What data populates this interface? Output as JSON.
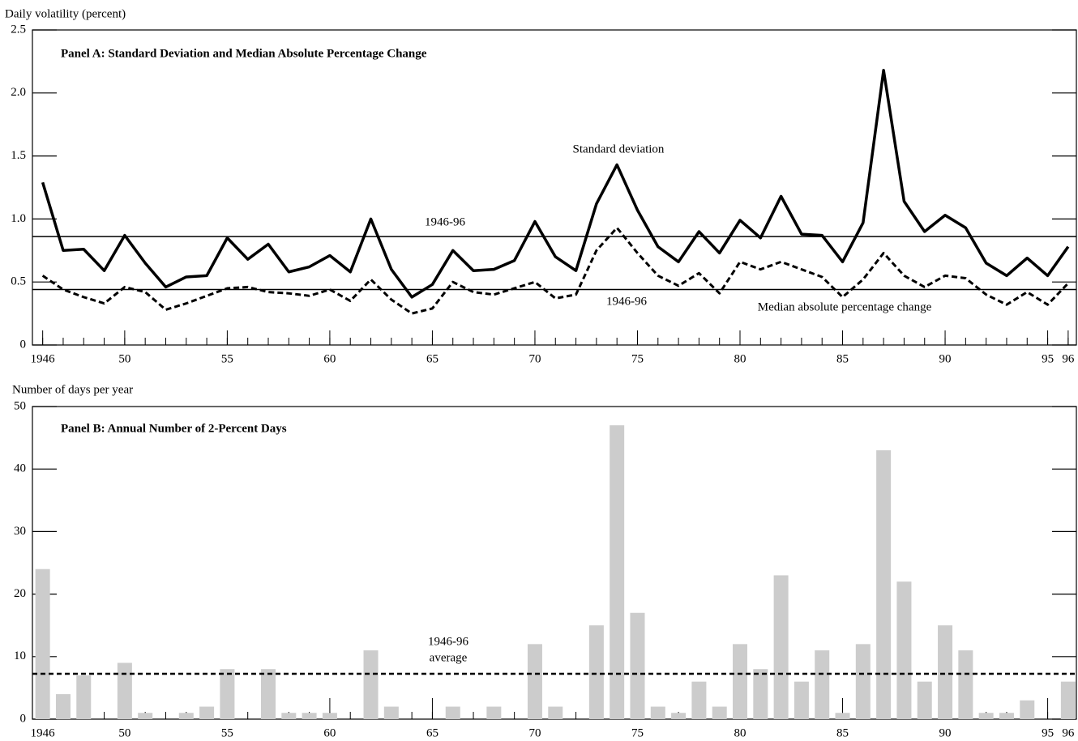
{
  "chart_data": [
    {
      "type": "line",
      "title": "Panel A:  Standard Deviation and Median Absolute Percentage Change",
      "y_label": "Daily volatility (percent)",
      "x": [
        1946,
        1947,
        1948,
        1949,
        1950,
        1951,
        1952,
        1953,
        1954,
        1955,
        1956,
        1957,
        1958,
        1959,
        1960,
        1961,
        1962,
        1963,
        1964,
        1965,
        1966,
        1967,
        1968,
        1969,
        1970,
        1971,
        1972,
        1973,
        1974,
        1975,
        1976,
        1977,
        1978,
        1979,
        1980,
        1981,
        1982,
        1983,
        1984,
        1985,
        1986,
        1987,
        1988,
        1989,
        1990,
        1991,
        1992,
        1993,
        1994,
        1995,
        1996
      ],
      "series": [
        {
          "name": "Standard deviation",
          "color": "#000000",
          "dash": false,
          "values": [
            1.29,
            0.75,
            0.76,
            0.59,
            0.87,
            0.65,
            0.46,
            0.54,
            0.55,
            0.85,
            0.68,
            0.8,
            0.58,
            0.62,
            0.71,
            0.58,
            1.0,
            0.6,
            0.38,
            0.48,
            0.75,
            0.59,
            0.6,
            0.67,
            0.98,
            0.7,
            0.59,
            1.12,
            1.43,
            1.07,
            0.78,
            0.66,
            0.9,
            0.73,
            0.99,
            0.85,
            1.18,
            0.88,
            0.87,
            0.66,
            0.97,
            2.18,
            1.14,
            0.9,
            1.03,
            0.93,
            0.65,
            0.55,
            0.69,
            0.55,
            0.78
          ]
        },
        {
          "name": "Median absolute percentage change",
          "color": "#000000",
          "dash": true,
          "values": [
            0.55,
            0.44,
            0.38,
            0.33,
            0.46,
            0.42,
            0.28,
            0.33,
            0.39,
            0.45,
            0.46,
            0.42,
            0.41,
            0.39,
            0.44,
            0.35,
            0.52,
            0.36,
            0.25,
            0.29,
            0.5,
            0.42,
            0.4,
            0.45,
            0.5,
            0.37,
            0.4,
            0.75,
            0.93,
            0.73,
            0.55,
            0.47,
            0.57,
            0.41,
            0.66,
            0.6,
            0.66,
            0.6,
            0.54,
            0.38,
            0.52,
            0.73,
            0.55,
            0.46,
            0.55,
            0.53,
            0.4,
            0.32,
            0.42,
            0.32,
            0.49
          ]
        }
      ],
      "reference_lines": [
        {
          "value": 0.86,
          "label": [
            "1946-96"
          ],
          "dash": false
        },
        {
          "value": 0.44,
          "label": [
            "1946-96"
          ],
          "dash": false
        }
      ],
      "xlim": [
        1945.5,
        1996.4
      ],
      "xticks": [
        1946,
        {
          "value": 1950,
          "label": "50"
        },
        {
          "value": 1955,
          "label": "55"
        },
        {
          "value": 1960,
          "label": "60"
        },
        {
          "value": 1965,
          "label": "65"
        },
        {
          "value": 1970,
          "label": "70"
        },
        {
          "value": 1975,
          "label": "75"
        },
        {
          "value": 1980,
          "label": "80"
        },
        {
          "value": 1985,
          "label": "85"
        },
        {
          "value": 1990,
          "label": "90"
        },
        {
          "value": 1995,
          "label": "95"
        },
        {
          "value": 1996,
          "label": "96"
        }
      ],
      "ylim": [
        0,
        2.5
      ],
      "yticks": [
        0,
        0.5,
        {
          "value": 1,
          "label": "1.0"
        },
        1.5,
        {
          "value": 2,
          "label": "2.0"
        },
        2.5
      ]
    },
    {
      "type": "bar",
      "title": "Panel B:  Annual Number of 2-Percent Days",
      "y_label": "Number of days per year",
      "x": [
        1946,
        1947,
        1948,
        1949,
        1950,
        1951,
        1952,
        1953,
        1954,
        1955,
        1956,
        1957,
        1958,
        1959,
        1960,
        1961,
        1962,
        1963,
        1964,
        1965,
        1966,
        1967,
        1968,
        1969,
        1970,
        1971,
        1972,
        1973,
        1974,
        1975,
        1976,
        1977,
        1978,
        1979,
        1980,
        1981,
        1982,
        1983,
        1984,
        1985,
        1986,
        1987,
        1988,
        1989,
        1990,
        1991,
        1992,
        1993,
        1994,
        1995,
        1996
      ],
      "values": [
        24,
        4,
        7,
        0,
        9,
        1,
        0,
        1,
        2,
        8,
        0,
        8,
        1,
        1,
        1,
        0,
        11,
        2,
        0,
        0,
        2,
        0,
        2,
        0,
        12,
        2,
        0,
        15,
        47,
        17,
        2,
        1,
        6,
        2,
        12,
        8,
        23,
        6,
        11,
        1,
        12,
        43,
        22,
        6,
        15,
        11,
        1,
        1,
        3,
        0,
        6
      ],
      "color": "#cccccc",
      "reference_lines": [
        {
          "value": 7.25,
          "label": [
            "1946-96",
            "average"
          ],
          "dash": true
        }
      ],
      "xlim": [
        1945.5,
        1996.4
      ],
      "xticks": [
        1946,
        {
          "value": 1950,
          "label": "50"
        },
        {
          "value": 1955,
          "label": "55"
        },
        {
          "value": 1960,
          "label": "60"
        },
        {
          "value": 1965,
          "label": "65"
        },
        {
          "value": 1970,
          "label": "70"
        },
        {
          "value": 1975,
          "label": "75"
        },
        {
          "value": 1980,
          "label": "80"
        },
        {
          "value": 1985,
          "label": "85"
        },
        {
          "value": 1990,
          "label": "90"
        },
        {
          "value": 1995,
          "label": "95"
        },
        {
          "value": 1996,
          "label": "96"
        }
      ],
      "ylim": [
        0,
        50
      ],
      "yticks": [
        0,
        10,
        20,
        30,
        40,
        50
      ]
    }
  ]
}
